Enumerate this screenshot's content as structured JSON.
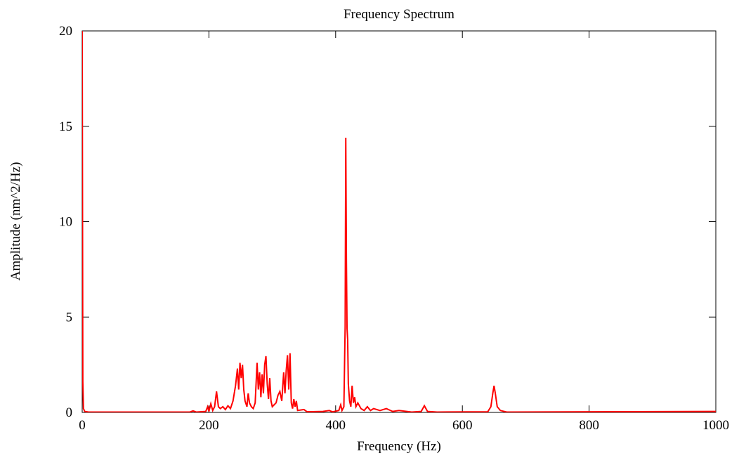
{
  "chart_data": {
    "type": "line",
    "title": "Frequency Spectrum",
    "x_label": "Frequency (Hz)",
    "y_label": "Amplitude (nm^2/Hz)",
    "xlim": [
      0,
      1000
    ],
    "xticks": [
      0,
      200,
      400,
      600,
      800,
      1000
    ],
    "ylim": [
      0,
      20
    ],
    "yticks": [
      0,
      5,
      10,
      15,
      20
    ],
    "grid": false,
    "x": [
      0,
      1,
      2,
      4,
      10,
      170,
      175,
      180,
      195,
      198,
      200,
      203,
      206,
      209,
      212,
      215,
      218,
      222,
      226,
      230,
      234,
      238,
      242,
      245,
      247,
      249,
      251,
      253,
      255,
      257,
      260,
      262,
      264,
      267,
      270,
      273,
      276,
      278,
      280,
      282,
      284,
      286,
      288,
      290,
      292,
      294,
      296,
      298,
      300,
      303,
      306,
      309,
      312,
      315,
      318,
      320,
      322,
      324,
      326,
      328,
      330,
      332,
      334,
      336,
      338,
      340,
      350,
      355,
      380,
      390,
      395,
      405,
      408,
      410,
      413,
      415,
      416,
      417,
      418,
      419,
      420,
      422,
      424,
      426,
      428,
      430,
      432,
      435,
      440,
      445,
      450,
      455,
      460,
      470,
      480,
      490,
      500,
      520,
      535,
      540,
      545,
      560,
      640,
      645,
      648,
      650,
      652,
      655,
      660,
      670,
      1000
    ],
    "series": [
      {
        "color": "#ff0000",
        "values": [
          20,
          1.6,
          0.2,
          0.05,
          0.02,
          0.02,
          0.08,
          0.02,
          0.05,
          0.3,
          0.05,
          0.45,
          0.1,
          0.3,
          1.1,
          0.3,
          0.2,
          0.3,
          0.15,
          0.35,
          0.2,
          0.6,
          1.4,
          2.3,
          1.2,
          2.6,
          1.8,
          2.5,
          1.2,
          0.6,
          0.3,
          1.0,
          0.5,
          0.3,
          0.2,
          0.5,
          2.6,
          1.2,
          2.1,
          0.8,
          2.0,
          1.0,
          2.5,
          2.95,
          1.5,
          0.7,
          1.8,
          0.6,
          0.3,
          0.4,
          0.5,
          0.9,
          1.1,
          0.6,
          2.1,
          1.0,
          2.2,
          3.0,
          1.2,
          3.1,
          0.5,
          0.2,
          0.7,
          0.3,
          0.6,
          0.1,
          0.15,
          0.03,
          0.05,
          0.1,
          0.03,
          0.1,
          0.4,
          0.1,
          0.3,
          4.5,
          14.4,
          8,
          4.4,
          3.8,
          1.5,
          0.6,
          0.3,
          1.4,
          0.5,
          0.8,
          0.3,
          0.5,
          0.2,
          0.1,
          0.3,
          0.1,
          0.2,
          0.1,
          0.2,
          0.05,
          0.1,
          0.02,
          0.05,
          0.35,
          0.05,
          0.02,
          0.03,
          0.3,
          1.0,
          1.4,
          1.0,
          0.3,
          0.1,
          0.02,
          0.05
        ]
      }
    ]
  }
}
